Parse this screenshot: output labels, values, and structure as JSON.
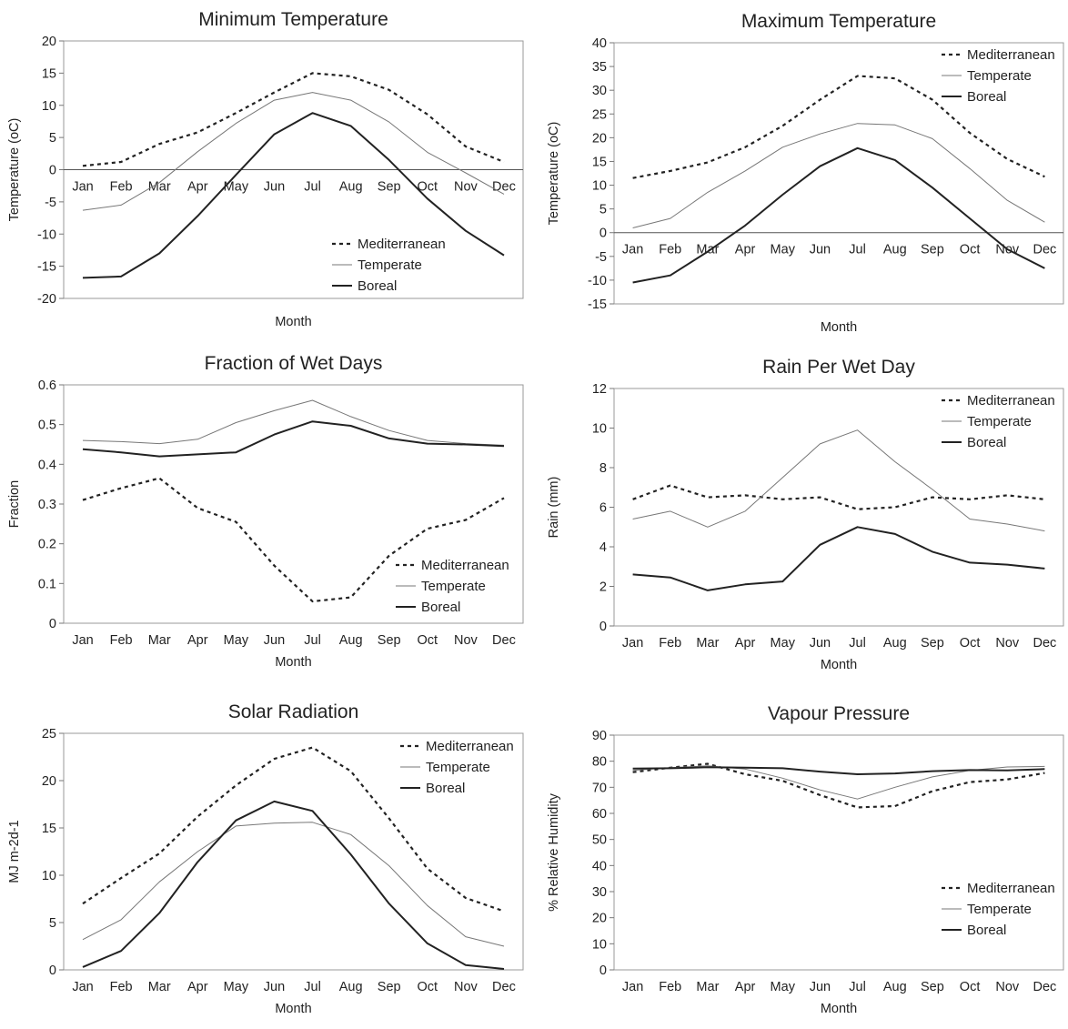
{
  "chart_data": [
    {
      "type": "line",
      "title": "Minimum Temperature",
      "xlabel": "Month",
      "ylabel": "Temperature (oC)",
      "ylim": [
        -20,
        20
      ],
      "yticks": [
        20,
        15,
        10,
        5,
        0,
        -5,
        -10,
        -15,
        -20
      ],
      "categories": [
        "Jan",
        "Feb",
        "Mar",
        "Apr",
        "May",
        "Jun",
        "Jul",
        "Aug",
        "Sep",
        "Oct",
        "Nov",
        "Dec"
      ],
      "series": [
        {
          "name": "Mediterranean",
          "values": [
            0.6,
            1.2,
            4.0,
            5.8,
            8.8,
            12.0,
            15.0,
            14.5,
            12.4,
            8.6,
            3.6,
            1.2
          ]
        },
        {
          "name": "Temperate",
          "values": [
            -6.3,
            -5.5,
            -2.0,
            2.8,
            7.2,
            10.8,
            12.0,
            10.8,
            7.4,
            2.7,
            -0.5,
            -3.8
          ]
        },
        {
          "name": "Boreal",
          "values": [
            -16.8,
            -16.6,
            -13.0,
            -7.2,
            -0.8,
            5.5,
            8.8,
            6.8,
            1.5,
            -4.5,
            -9.5,
            -13.3
          ]
        }
      ],
      "grid": false,
      "legend_position": "bottom-right"
    },
    {
      "type": "line",
      "title": "Maximum Temperature",
      "xlabel": "Month",
      "ylabel": "Temperature (oC)",
      "ylim": [
        -15,
        40
      ],
      "yticks": [
        40,
        35,
        30,
        25,
        20,
        15,
        10,
        5,
        0,
        -5,
        -10,
        -15
      ],
      "categories": [
        "Jan",
        "Feb",
        "Mar",
        "Apr",
        "May",
        "Jun",
        "Jul",
        "Aug",
        "Sep",
        "Oct",
        "Nov",
        "Dec"
      ],
      "series": [
        {
          "name": "Mediterranean",
          "values": [
            11.5,
            13.0,
            14.8,
            18.0,
            22.5,
            28.0,
            33.0,
            32.5,
            28.0,
            21.0,
            15.5,
            11.8
          ]
        },
        {
          "name": "Temperate",
          "values": [
            1.0,
            3.0,
            8.5,
            13.0,
            18.0,
            20.8,
            23.0,
            22.7,
            19.8,
            13.5,
            6.8,
            2.2
          ]
        },
        {
          "name": "Boreal",
          "values": [
            -10.5,
            -9.0,
            -4.0,
            1.5,
            8.0,
            14.0,
            17.8,
            15.3,
            9.5,
            3.0,
            -3.5,
            -7.5
          ]
        }
      ],
      "grid": false,
      "legend_position": "top-right"
    },
    {
      "type": "line",
      "title": "Fraction of Wet Days",
      "xlabel": "Month",
      "ylabel": "Fraction",
      "ylim": [
        0,
        0.6
      ],
      "yticks": [
        0.6,
        0.5,
        0.4,
        0.3,
        0.2,
        0.1,
        0
      ],
      "categories": [
        "Jan",
        "Feb",
        "Mar",
        "Apr",
        "May",
        "Jun",
        "Jul",
        "Aug",
        "Sep",
        "Oct",
        "Nov",
        "Dec"
      ],
      "series": [
        {
          "name": "Mediterranean",
          "values": [
            0.31,
            0.34,
            0.365,
            0.29,
            0.255,
            0.145,
            0.055,
            0.065,
            0.17,
            0.238,
            0.26,
            0.315
          ]
        },
        {
          "name": "Temperate",
          "values": [
            0.46,
            0.457,
            0.452,
            0.463,
            0.505,
            0.535,
            0.561,
            0.52,
            0.485,
            0.46,
            0.452,
            0.448
          ]
        },
        {
          "name": "Boreal",
          "values": [
            0.438,
            0.43,
            0.42,
            0.425,
            0.43,
            0.475,
            0.508,
            0.497,
            0.465,
            0.452,
            0.45,
            0.446
          ]
        }
      ],
      "grid": false,
      "legend_position": "bottom-right"
    },
    {
      "type": "line",
      "title": "Rain Per Wet Day",
      "xlabel": "Month",
      "ylabel": "Rain (mm)",
      "ylim": [
        0,
        12
      ],
      "yticks": [
        12,
        10,
        8,
        6,
        4,
        2,
        0
      ],
      "categories": [
        "Jan",
        "Feb",
        "Mar",
        "Apr",
        "May",
        "Jun",
        "Jul",
        "Aug",
        "Sep",
        "Oct",
        "Nov",
        "Dec"
      ],
      "series": [
        {
          "name": "Mediterranean",
          "values": [
            6.4,
            7.1,
            6.5,
            6.6,
            6.4,
            6.5,
            5.9,
            6.0,
            6.5,
            6.4,
            6.6,
            6.4
          ]
        },
        {
          "name": "Temperate",
          "values": [
            5.4,
            5.8,
            5.0,
            5.8,
            7.5,
            9.2,
            9.9,
            8.3,
            6.9,
            5.4,
            5.15,
            4.8
          ]
        },
        {
          "name": "Boreal",
          "values": [
            2.6,
            2.45,
            1.8,
            2.1,
            2.25,
            4.1,
            5.0,
            4.65,
            3.75,
            3.2,
            3.1,
            2.9
          ]
        }
      ],
      "grid": false,
      "legend_position": "top-right"
    },
    {
      "type": "line",
      "title": "Solar Radiation",
      "xlabel": "Month",
      "ylabel": "MJ m-2d-1",
      "ylim": [
        0,
        25
      ],
      "yticks": [
        25,
        20,
        15,
        10,
        5,
        0
      ],
      "categories": [
        "Jan",
        "Feb",
        "Mar",
        "Apr",
        "May",
        "Jun",
        "Jul",
        "Aug",
        "Sep",
        "Oct",
        "Nov",
        "Dec"
      ],
      "series": [
        {
          "name": "Mediterranean",
          "values": [
            7.0,
            9.7,
            12.3,
            16.2,
            19.5,
            22.3,
            23.5,
            21.0,
            16.0,
            10.7,
            7.6,
            6.2
          ]
        },
        {
          "name": "Temperate",
          "values": [
            3.2,
            5.3,
            9.3,
            12.5,
            15.2,
            15.5,
            15.6,
            14.3,
            11.0,
            6.8,
            3.5,
            2.5
          ]
        },
        {
          "name": "Boreal",
          "values": [
            0.3,
            2.0,
            6.0,
            11.4,
            15.8,
            17.8,
            16.8,
            12.2,
            7.0,
            2.8,
            0.5,
            0.1
          ]
        }
      ],
      "grid": false,
      "legend_position": "top-right"
    },
    {
      "type": "line",
      "title": "Vapour Pressure",
      "xlabel": "Month",
      "ylabel": "% Relative Humidity",
      "ylim": [
        0,
        90
      ],
      "yticks": [
        90,
        80,
        70,
        60,
        50,
        40,
        30,
        20,
        10,
        0
      ],
      "categories": [
        "Jan",
        "Feb",
        "Mar",
        "Apr",
        "May",
        "Jun",
        "Jul",
        "Aug",
        "Sep",
        "Oct",
        "Nov",
        "Dec"
      ],
      "series": [
        {
          "name": "Mediterranean",
          "values": [
            75.8,
            77.5,
            79.0,
            75.0,
            72.5,
            67.0,
            62.3,
            62.8,
            68.5,
            72.0,
            73.0,
            75.5
          ]
        },
        {
          "name": "Temperate",
          "values": [
            76.5,
            77.5,
            78.2,
            77.0,
            73.5,
            69.0,
            65.5,
            70.0,
            74.0,
            76.5,
            77.8,
            78.0
          ]
        },
        {
          "name": "Boreal",
          "values": [
            77.2,
            77.3,
            77.7,
            77.5,
            77.3,
            76.0,
            75.0,
            75.3,
            76.2,
            76.6,
            76.5,
            77.0
          ]
        }
      ],
      "grid": false,
      "legend_position": "bottom-right"
    }
  ]
}
